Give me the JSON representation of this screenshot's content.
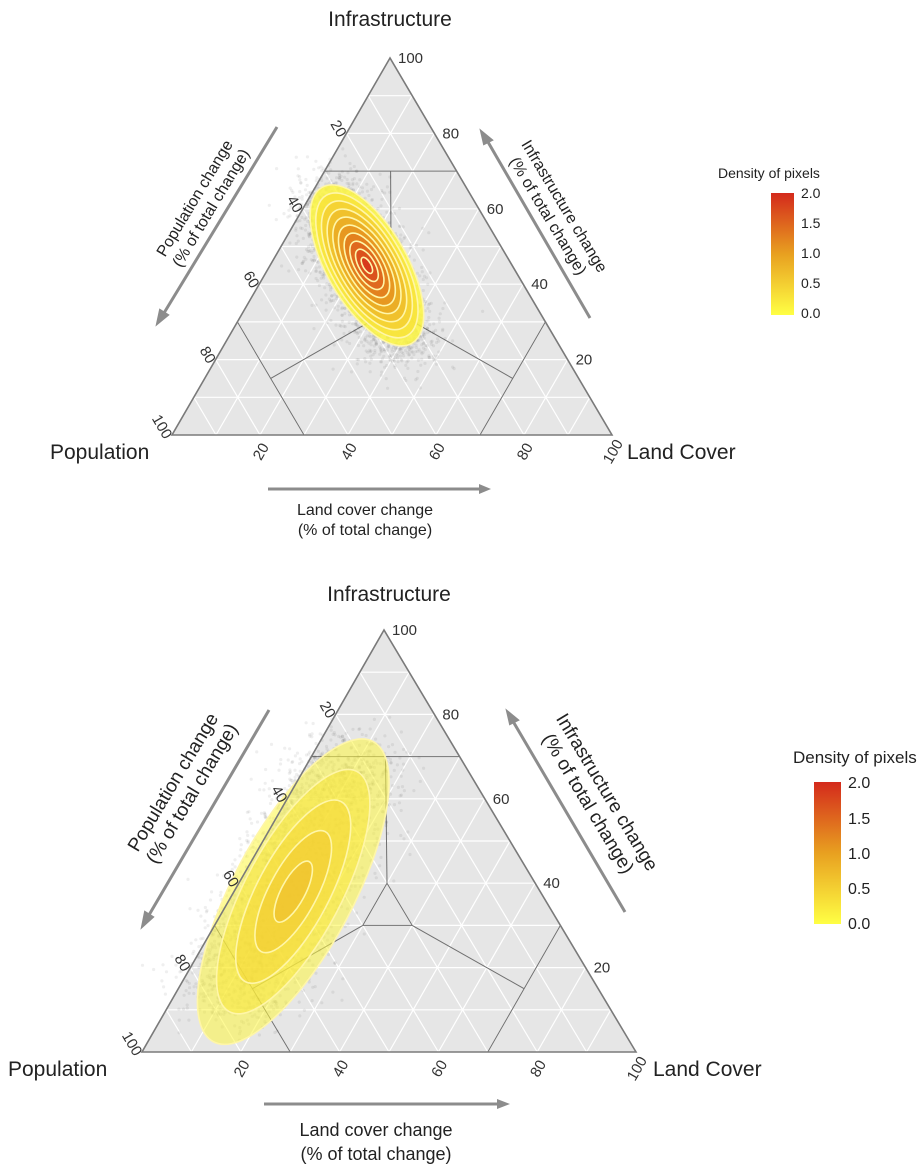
{
  "chart_data": [
    {
      "type": "ternary-density",
      "vertices": {
        "top": "Infrastructure",
        "left": "Population",
        "right": "Land Cover"
      },
      "axis_titles": {
        "left": [
          "Population change",
          "(% of total change)"
        ],
        "right": [
          "Infrastructure change",
          "(% of total change)"
        ],
        "bottom": [
          "Land cover change",
          "(% of total change)"
        ]
      },
      "tick_labels": {
        "infrastructure": [
          "20",
          "40",
          "60",
          "80",
          "100"
        ],
        "population": [
          "20",
          "40",
          "60",
          "80",
          "100"
        ],
        "land_cover": [
          "20",
          "40",
          "60",
          "80",
          "100"
        ]
      },
      "legend": {
        "title": "Density of pixels",
        "ticks": [
          "2.0",
          "1.5",
          "1.0",
          "0.5",
          "0.0"
        ],
        "range": [
          0,
          2
        ],
        "colors": [
          "#ffff44",
          "#e8a020",
          "#d42a1c"
        ]
      },
      "density_peak": {
        "infrastructure": 45,
        "population": 33,
        "land_cover": 22
      },
      "contour_levels": [
        0.1,
        0.3,
        0.5,
        0.7,
        0.9,
        1.1,
        1.3,
        1.5,
        1.7,
        1.9
      ]
    },
    {
      "type": "ternary-density",
      "vertices": {
        "top": "Infrastructure",
        "left": "Population",
        "right": "Land Cover"
      },
      "axis_titles": {
        "left": [
          "Population change",
          "(% of total change)"
        ],
        "right": [
          "Infrastructure change",
          "(% of total change)"
        ],
        "bottom": [
          "Land cover change",
          "(% of total change)"
        ]
      },
      "tick_labels": {
        "infrastructure": [
          "20",
          "40",
          "60",
          "80",
          "100"
        ],
        "population": [
          "20",
          "40",
          "60",
          "80",
          "100"
        ],
        "land_cover": [
          "20",
          "40",
          "60",
          "80",
          "100"
        ]
      },
      "legend": {
        "title": "Density of pixels",
        "ticks": [
          "2.0",
          "1.5",
          "1.0",
          "0.5",
          "0.0"
        ],
        "range": [
          0,
          2
        ],
        "colors": [
          "#ffff44",
          "#e8a020",
          "#d42a1c"
        ]
      },
      "density_peak": {
        "infrastructure": 38,
        "population": 50,
        "land_cover": 12
      },
      "contour_levels": [
        0.1,
        0.25,
        0.4,
        0.55,
        0.7
      ]
    }
  ]
}
